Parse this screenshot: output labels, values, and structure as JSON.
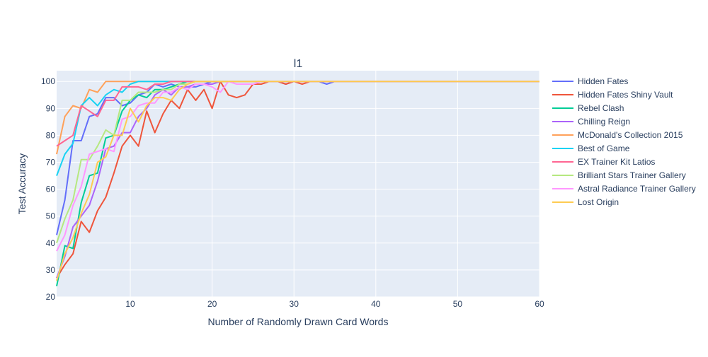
{
  "chart_data": {
    "type": "line",
    "title": "l1",
    "xlabel": "Number of Randomly Drawn Card Words",
    "ylabel": "Test Accuracy",
    "xlim": [
      1,
      60
    ],
    "ylim": [
      20,
      104
    ],
    "xticks": [
      10,
      20,
      30,
      40,
      50,
      60
    ],
    "yticks": [
      20,
      30,
      40,
      50,
      60,
      70,
      80,
      90,
      100
    ],
    "grid": true,
    "legend_position": "right",
    "plot_background": "#e5ecf6",
    "series": [
      {
        "name": "Hidden Fates",
        "color": "#636efa",
        "values": [
          43,
          56,
          78,
          78,
          87,
          88,
          94,
          94,
          91,
          92,
          95,
          96,
          99,
          98,
          99,
          98,
          98,
          98,
          99,
          100,
          100,
          100,
          100,
          100,
          100,
          100,
          100,
          100,
          99,
          100,
          100,
          100,
          100,
          99,
          100
        ]
      },
      {
        "name": "Hidden Fates Shiny Vault",
        "color": "#ef553b",
        "values": [
          27,
          32,
          36,
          48,
          44,
          52,
          57,
          66,
          76,
          80,
          76,
          89,
          81,
          88,
          93,
          90,
          97,
          93,
          97,
          90,
          100,
          95,
          94,
          95,
          99,
          99,
          100,
          100,
          99,
          100,
          99,
          100,
          100,
          100,
          100
        ]
      },
      {
        "name": "Rebel Clash",
        "color": "#00cc96",
        "values": [
          24,
          39,
          38,
          55,
          65,
          66,
          79,
          80,
          89,
          93,
          95,
          94,
          97,
          97,
          98,
          99,
          100,
          100,
          100,
          100,
          100,
          100,
          100,
          100,
          100,
          100,
          100,
          100,
          100,
          100,
          100,
          100,
          100,
          100,
          100
        ]
      },
      {
        "name": "Chilling Reign",
        "color": "#ab63fa",
        "values": [
          27,
          35,
          46,
          50,
          54,
          63,
          75,
          76,
          81,
          81,
          87,
          90,
          95,
          97,
          95,
          98,
          98,
          99,
          99,
          99,
          100,
          100,
          100,
          100,
          100,
          100,
          100,
          100,
          100,
          100,
          100,
          100,
          100,
          100,
          100
        ]
      },
      {
        "name": "McDonald's Collection 2015",
        "color": "#ffa15a",
        "values": [
          73,
          87,
          91,
          90,
          97,
          96,
          100,
          100,
          100,
          100,
          100,
          100,
          100,
          100,
          100,
          100,
          100,
          100,
          100,
          100,
          100,
          100,
          100,
          100,
          100,
          100,
          100,
          100,
          100,
          100,
          100,
          100,
          100,
          100,
          100
        ]
      },
      {
        "name": "Best of Game",
        "color": "#19d3f3",
        "values": [
          65,
          73,
          77,
          91,
          94,
          91,
          95,
          97,
          96,
          99,
          100,
          100,
          100,
          100,
          100,
          100,
          100,
          100,
          100,
          100,
          100,
          100,
          100,
          100,
          100,
          100,
          100,
          100,
          100,
          100,
          100,
          100,
          100,
          100,
          100
        ]
      },
      {
        "name": "EX Trainer Kit Latios",
        "color": "#ff6692",
        "values": [
          76,
          78,
          80,
          91,
          89,
          87,
          93,
          93,
          98,
          98,
          98,
          97,
          99,
          99,
          100,
          100,
          100,
          100,
          100,
          100,
          100,
          100,
          100,
          100,
          100,
          100,
          100,
          100,
          100,
          100,
          100,
          100,
          100,
          100,
          100
        ]
      },
      {
        "name": "Brilliant Stars Trainer Gallery",
        "color": "#b6e880",
        "values": [
          40,
          49,
          56,
          71,
          71,
          76,
          82,
          80,
          93,
          93,
          96,
          96,
          96,
          97,
          97,
          99,
          99,
          100,
          100,
          100,
          100,
          100,
          100,
          100,
          100,
          100,
          100,
          100,
          100,
          100,
          100,
          100,
          100,
          100,
          100
        ]
      },
      {
        "name": "Astral Radiance Trainer Gallery",
        "color": "#ff97ff",
        "values": [
          37,
          43,
          54,
          61,
          73,
          74,
          75,
          74,
          86,
          87,
          91,
          92,
          92,
          96,
          96,
          98,
          97,
          99,
          99,
          98,
          96,
          100,
          99,
          99,
          99,
          100,
          100,
          100,
          100,
          100,
          100,
          100,
          100,
          100,
          100
        ]
      },
      {
        "name": "Lost Origin",
        "color": "#fecb52",
        "values": [
          26,
          36,
          42,
          51,
          58,
          70,
          72,
          80,
          80,
          90,
          85,
          91,
          94,
          94,
          93,
          97,
          99,
          100,
          100,
          100,
          100,
          100,
          100,
          100,
          100,
          100,
          100,
          100,
          100,
          100,
          100,
          100,
          100,
          100,
          100
        ]
      }
    ]
  }
}
